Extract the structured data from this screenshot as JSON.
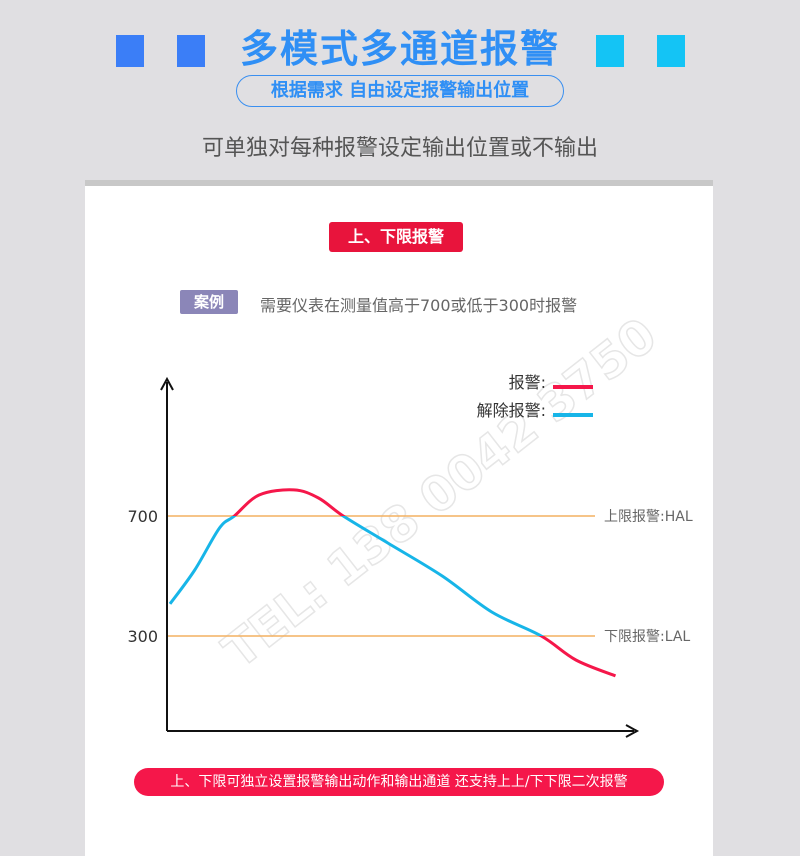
{
  "header": {
    "title": "多模式多通道报警",
    "subtitle": "根据需求 自由设定报警输出位置",
    "description": "可单独对每种报警设定输出位置或不输出"
  },
  "colors": {
    "left_squares": "#3b7ef7",
    "right_squares": "#14c4f5",
    "alarm": "#f5174a",
    "clear": "#17b5e8",
    "limit_line": "#f4b060"
  },
  "card": {
    "badge": "上、下限报警",
    "case_label": "案例",
    "case_text": "需要仪表在测量值高于700或低于300时报警",
    "note": "上、下限可独立设置报警输出动作和输出通道 还支持上上/下下限二次报警"
  },
  "watermark": "TEL: 138 0042 3750",
  "chart_data": {
    "type": "line",
    "title": "",
    "yticks": [
      300,
      700
    ],
    "ylim": [
      0,
      1200
    ],
    "legend": [
      {
        "name": "报警:",
        "color": "#f5174a"
      },
      {
        "name": "解除报警:",
        "color": "#17b5e8"
      }
    ],
    "legend_placement": "top-right",
    "thresholds": [
      {
        "label": "上限报警:HAL",
        "value": 700
      },
      {
        "label": "下限报警:LAL",
        "value": 300
      }
    ],
    "curve": {
      "x": [
        0,
        0.5,
        1,
        1.3,
        1.8,
        2.5,
        3,
        3.5,
        4.4,
        5.5,
        6.5,
        7.5,
        8.2,
        9
      ],
      "y": [
        407,
        520,
        660,
        700,
        770,
        787,
        760,
        700,
        610,
        500,
        380,
        300,
        220,
        167
      ]
    }
  }
}
